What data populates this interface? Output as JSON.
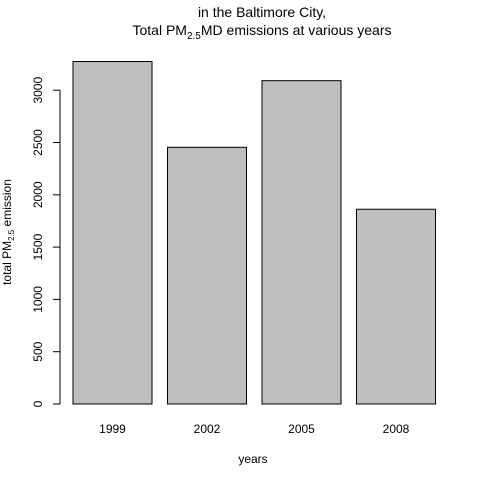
{
  "chart_data": {
    "type": "bar",
    "title_line1": "in the Baltimore City,",
    "title_prefix": "Total PM",
    "title_sub": "2.5",
    "title_suffix": "MD emissions at various years",
    "xlabel": "years",
    "ylabel_prefix": "total PM",
    "ylabel_sub": "2.5",
    "ylabel_suffix": " emission",
    "categories": [
      "1999",
      "2002",
      "2005",
      "2008"
    ],
    "values": [
      3274,
      2454,
      3091,
      1862
    ],
    "ylim": [
      0,
      3300
    ],
    "yticks": [
      0,
      500,
      1000,
      1500,
      2000,
      2500,
      3000
    ],
    "bar_fill": "#bebebe",
    "bar_stroke": "#000000"
  }
}
